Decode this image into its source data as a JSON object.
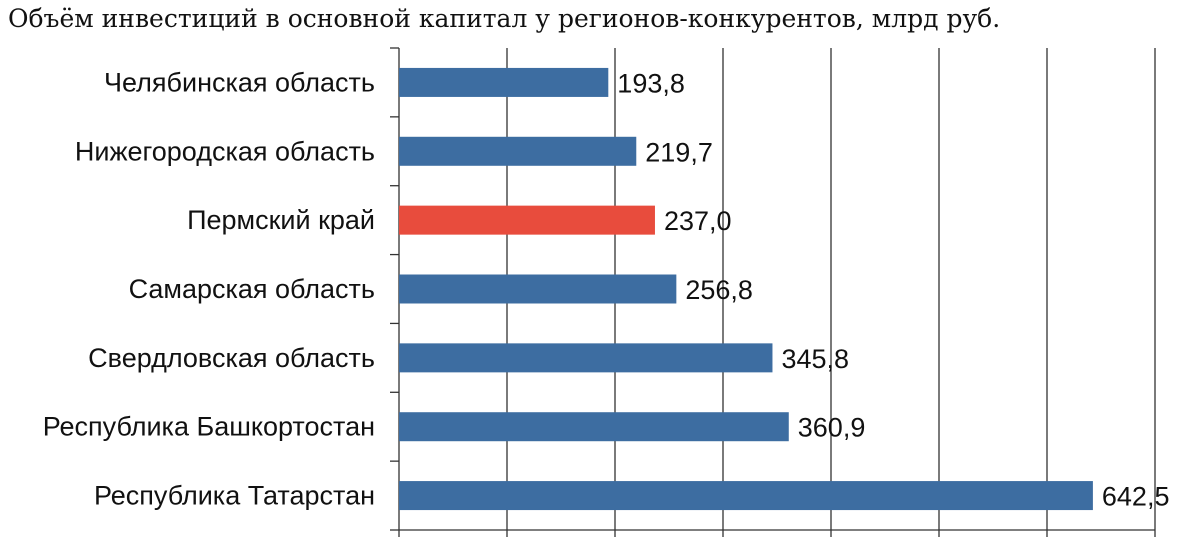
{
  "chart_data": {
    "type": "bar",
    "orientation": "horizontal",
    "title": "Объём инвестиций в основной капитал у регионов-конкурентов, млрд руб.",
    "categories": [
      "Челябинская область",
      "Нижегородская область",
      "Пермский край",
      "Самарская область",
      "Свердловская область",
      "Республика Башкортостан",
      "Республика Татарстан"
    ],
    "values": [
      193.8,
      219.7,
      237.0,
      256.8,
      345.8,
      360.9,
      642.5
    ],
    "value_labels": [
      "193,8",
      "219,7",
      "237,0",
      "256,8",
      "345,8",
      "360,9",
      "642,5"
    ],
    "highlight_index": 2,
    "colors": {
      "bar": "#3d6da1",
      "highlight": "#e84c3d",
      "grid": "#333333"
    },
    "xlim": [
      0,
      700
    ],
    "grid": true,
    "legend": "none"
  }
}
